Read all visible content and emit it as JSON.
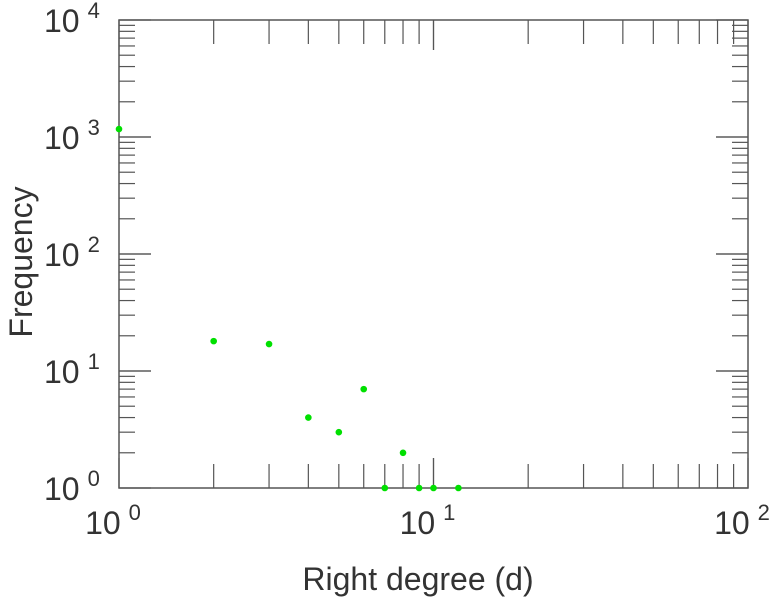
{
  "chart_data": {
    "type": "scatter",
    "title": "",
    "xlabel": "Right degree (d)",
    "ylabel": "Frequency",
    "xscale": "log",
    "yscale": "log",
    "xlim": [
      1,
      100
    ],
    "ylim": [
      1,
      10000
    ],
    "grid": false,
    "marker_color": "#00e000",
    "x_ticks": [
      {
        "base": "10",
        "exp": "0",
        "value": 1
      },
      {
        "base": "10",
        "exp": "1",
        "value": 10
      },
      {
        "base": "10",
        "exp": "2",
        "value": 100
      }
    ],
    "y_ticks": [
      {
        "base": "10",
        "exp": "0",
        "value": 1
      },
      {
        "base": "10",
        "exp": "1",
        "value": 10
      },
      {
        "base": "10",
        "exp": "2",
        "value": 100
      },
      {
        "base": "10",
        "exp": "3",
        "value": 1000
      },
      {
        "base": "10",
        "exp": "4",
        "value": 10000
      }
    ],
    "points": [
      {
        "x": 1,
        "y": 1170
      },
      {
        "x": 2,
        "y": 18
      },
      {
        "x": 3,
        "y": 17
      },
      {
        "x": 4,
        "y": 4
      },
      {
        "x": 5,
        "y": 3
      },
      {
        "x": 6,
        "y": 7
      },
      {
        "x": 7,
        "y": 1
      },
      {
        "x": 8,
        "y": 2
      },
      {
        "x": 9,
        "y": 1
      },
      {
        "x": 10,
        "y": 1
      },
      {
        "x": 12,
        "y": 1
      }
    ]
  }
}
